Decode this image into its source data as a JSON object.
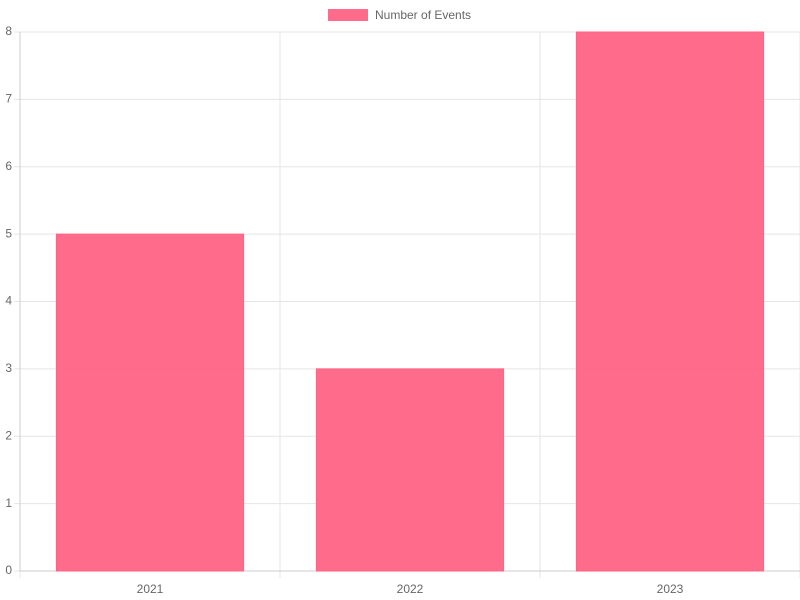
{
  "chart_data": {
    "type": "bar",
    "categories": [
      "2021",
      "2022",
      "2023"
    ],
    "series": [
      {
        "name": "Number of Events",
        "color": "#ff6384",
        "values": [
          5,
          3,
          8
        ]
      }
    ],
    "ylim": [
      0,
      8
    ],
    "yticks": [
      0,
      1,
      2,
      3,
      4,
      5,
      6,
      7,
      8
    ],
    "grid": true,
    "legend": "top"
  }
}
